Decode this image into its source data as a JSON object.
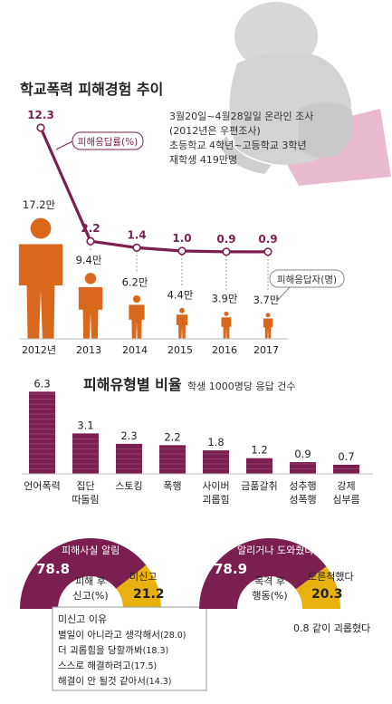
{
  "colors": {
    "purple": "#7a1f4f",
    "orange": "#d9671c",
    "yellow": "#e8b10d",
    "gray": "#9a9a9a",
    "silhouette": "#d8d8d8",
    "shadow": "#e9b9cf"
  },
  "icons": {
    "silhouette": "sad-child-icon",
    "people": "person-figure-icon"
  },
  "chart_data": [
    {
      "type": "line",
      "title": "학교폭력 피해경험 추이",
      "note_lines": [
        "3월20일~4월28일일 온라인 조사",
        "(2012년은 우편조사)",
        "초등학교 4학년~고등학교 3학년",
        "재학생 419만명"
      ],
      "rate_series_label": "피해응답률(%)",
      "count_series_label": "피해응답자(명)",
      "categories": [
        "2012년",
        "2013",
        "2014",
        "2015",
        "2016",
        "2017"
      ],
      "rate_values": [
        12.3,
        2.2,
        1.4,
        1.0,
        0.9,
        0.9
      ],
      "rate_labels": [
        "12.3",
        "2.2",
        "1.4",
        "1.0",
        "0.9",
        "0.9"
      ],
      "count_values": [
        17.2,
        9.4,
        6.2,
        4.4,
        3.9,
        3.7
      ],
      "count_labels": [
        "17.2만",
        "9.4만",
        "6.2만",
        "4.4만",
        "3.9만",
        "3.7만"
      ]
    },
    {
      "type": "bar",
      "title": "피해유형별 비율",
      "subtitle": "학생 1000명당 응답 건수",
      "categories": [
        [
          "언어폭력"
        ],
        [
          "집단",
          "따돌림"
        ],
        [
          "스토킹"
        ],
        [
          "폭행"
        ],
        [
          "사이버",
          "괴롭힘"
        ],
        [
          "금품갈취"
        ],
        [
          "성추행",
          "성폭행"
        ],
        [
          "강제",
          "심부름"
        ]
      ],
      "values": [
        6.3,
        3.1,
        2.3,
        2.2,
        1.8,
        1.2,
        0.9,
        0.7
      ],
      "value_labels": [
        "6.3",
        "3.1",
        "2.3",
        "2.2",
        "1.8",
        "1.2",
        "0.9",
        "0.7"
      ]
    },
    {
      "type": "pie",
      "center_label": [
        "피해 후",
        "신고(%)"
      ],
      "slices": [
        {
          "name": "피해사실 알림",
          "value": 78.8,
          "label": "78.8"
        },
        {
          "name": "미신고",
          "value": 21.2,
          "label": "21.2"
        }
      ],
      "reasons_title": "미신고 이유",
      "reasons": [
        {
          "text": "별일이 아니라고 생각해서",
          "value": "(28.0)"
        },
        {
          "text": "더 괴롭힘을 당할까봐",
          "value": "(18.3)"
        },
        {
          "text": "스스로 해결하려고",
          "value": "(17.5)"
        },
        {
          "text": "해결이 안 될것 같아서",
          "value": "(14.3)"
        }
      ]
    },
    {
      "type": "pie",
      "center_label": [
        "목격 후",
        "행동(%)"
      ],
      "slices": [
        {
          "name": "알리거나 도와줬다",
          "value": 78.9,
          "label": "78.9"
        },
        {
          "name": "모른척했다",
          "value": 20.3,
          "label": "20.3"
        }
      ],
      "footnote": "0.8 같이 괴롭혔다"
    }
  ]
}
